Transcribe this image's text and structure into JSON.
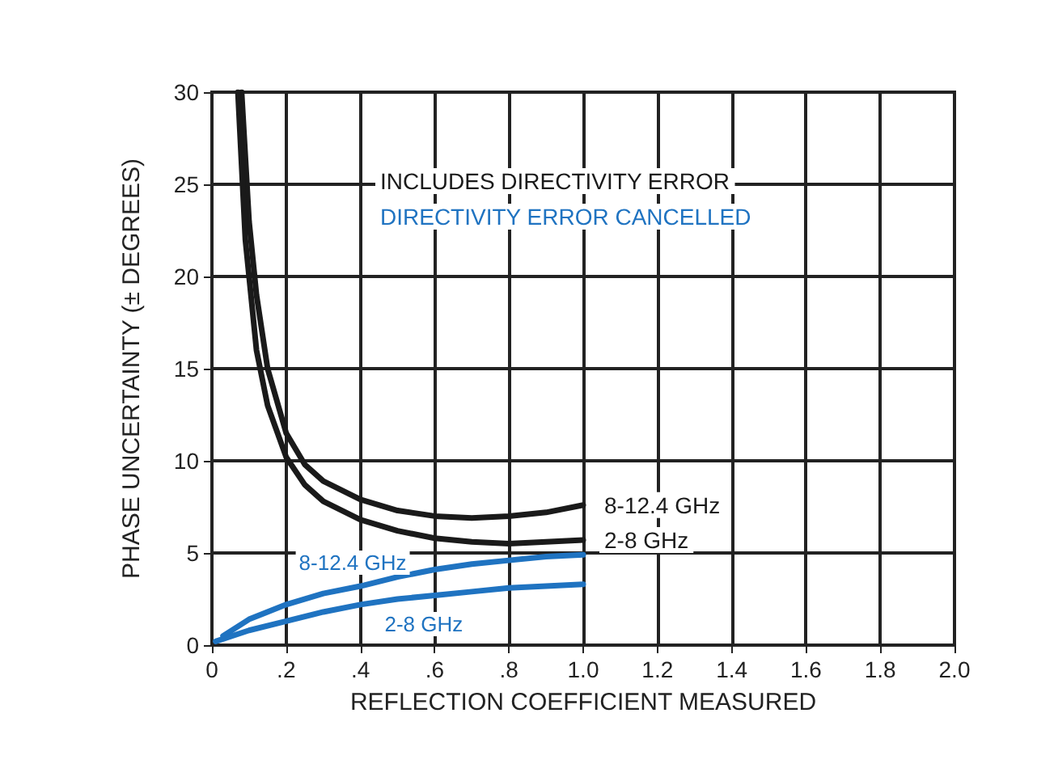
{
  "chart_data": {
    "type": "line",
    "xlabel": "REFLECTION COEFFICIENT MEASURED",
    "ylabel": "PHASE UNCERTAINTY (± DEGREES)",
    "annotations": [
      "INCLUDES DIRECTIVITY ERROR",
      "DIRECTIVITY ERROR CANCELLED"
    ],
    "series": [
      {
        "name": "8-12.4 GHz",
        "color": "#1a1a1a",
        "x": [
          0.08,
          0.1,
          0.12,
          0.15,
          0.2,
          0.25,
          0.3,
          0.4,
          0.5,
          0.6,
          0.7,
          0.8,
          0.9,
          1.0
        ],
        "values": [
          30,
          23,
          19,
          15,
          11.5,
          9.8,
          8.9,
          7.9,
          7.3,
          7.0,
          6.9,
          7.0,
          7.2,
          7.6
        ]
      },
      {
        "name": "2-8 GHz",
        "color": "#1a1a1a",
        "x": [
          0.07,
          0.09,
          0.12,
          0.15,
          0.2,
          0.25,
          0.3,
          0.4,
          0.5,
          0.6,
          0.7,
          0.8,
          0.9,
          1.0
        ],
        "values": [
          30,
          22,
          16,
          13,
          10.2,
          8.7,
          7.8,
          6.8,
          6.2,
          5.8,
          5.6,
          5.5,
          5.6,
          5.7
        ]
      },
      {
        "name": "8-12.4 GHz",
        "color": "#1f73c1",
        "x": [
          0.03,
          0.1,
          0.2,
          0.3,
          0.4,
          0.5,
          0.6,
          0.7,
          0.8,
          0.9,
          1.0
        ],
        "values": [
          0.5,
          1.4,
          2.2,
          2.8,
          3.2,
          3.7,
          4.1,
          4.4,
          4.6,
          4.8,
          4.9
        ]
      },
      {
        "name": "2-8 GHz",
        "color": "#1f73c1",
        "x": [
          0.01,
          0.1,
          0.2,
          0.3,
          0.4,
          0.5,
          0.6,
          0.7,
          0.8,
          0.9,
          1.0
        ],
        "values": [
          0.2,
          0.8,
          1.3,
          1.8,
          2.2,
          2.5,
          2.7,
          2.9,
          3.1,
          3.2,
          3.3
        ]
      }
    ],
    "xlim": [
      0,
      2
    ],
    "ylim": [
      0,
      30
    ],
    "xticks": [
      0,
      {
        "value": 0.2,
        "label": ".2"
      },
      {
        "value": 0.4,
        "label": ".4"
      },
      {
        "value": 0.6,
        "label": ".6"
      },
      {
        "value": 0.8,
        "label": ".8"
      },
      {
        "value": 1.0,
        "label": "1.0"
      },
      1.2,
      1.4,
      1.6,
      1.8,
      {
        "value": 2.0,
        "label": "2.0"
      }
    ],
    "yticks": [
      0,
      5,
      10,
      15,
      20,
      25,
      30
    ],
    "grid": true,
    "legend": false,
    "marker": "none",
    "line_style": "solid"
  }
}
